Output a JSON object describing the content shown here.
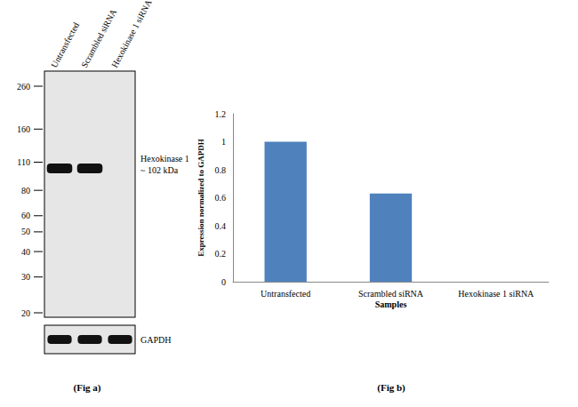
{
  "chart_data": {
    "type": "bar",
    "categories": [
      "Untransfected",
      "Scrambled siRNA",
      "Hexokinase 1 siRNA"
    ],
    "values": [
      1,
      0.63,
      0
    ],
    "color": "#4f81bd",
    "ylim": [
      0,
      1.2
    ],
    "yticks": [
      0,
      0.2,
      0.4,
      0.6,
      0.8,
      1,
      1.2
    ],
    "ylabel": "Expression normalized to GAPDH",
    "xlabel": "Samples",
    "grid": false,
    "caption": "(Fig b)"
  },
  "blot": {
    "caption": "(Fig a)",
    "lanes": [
      "Untransfected",
      "Scrambled siRNA",
      "Hexokinase 1 siRNA"
    ],
    "ladder_kda": [
      260,
      160,
      110,
      80,
      60,
      50,
      40,
      30,
      20
    ],
    "target": {
      "name": "Hexokinase 1",
      "size": {
        "value": 102,
        "label": "~ 102 kDa"
      },
      "present": [
        true,
        true,
        false
      ]
    },
    "loading_control": {
      "name": "GAPDH",
      "present": [
        true,
        true,
        true
      ]
    }
  }
}
